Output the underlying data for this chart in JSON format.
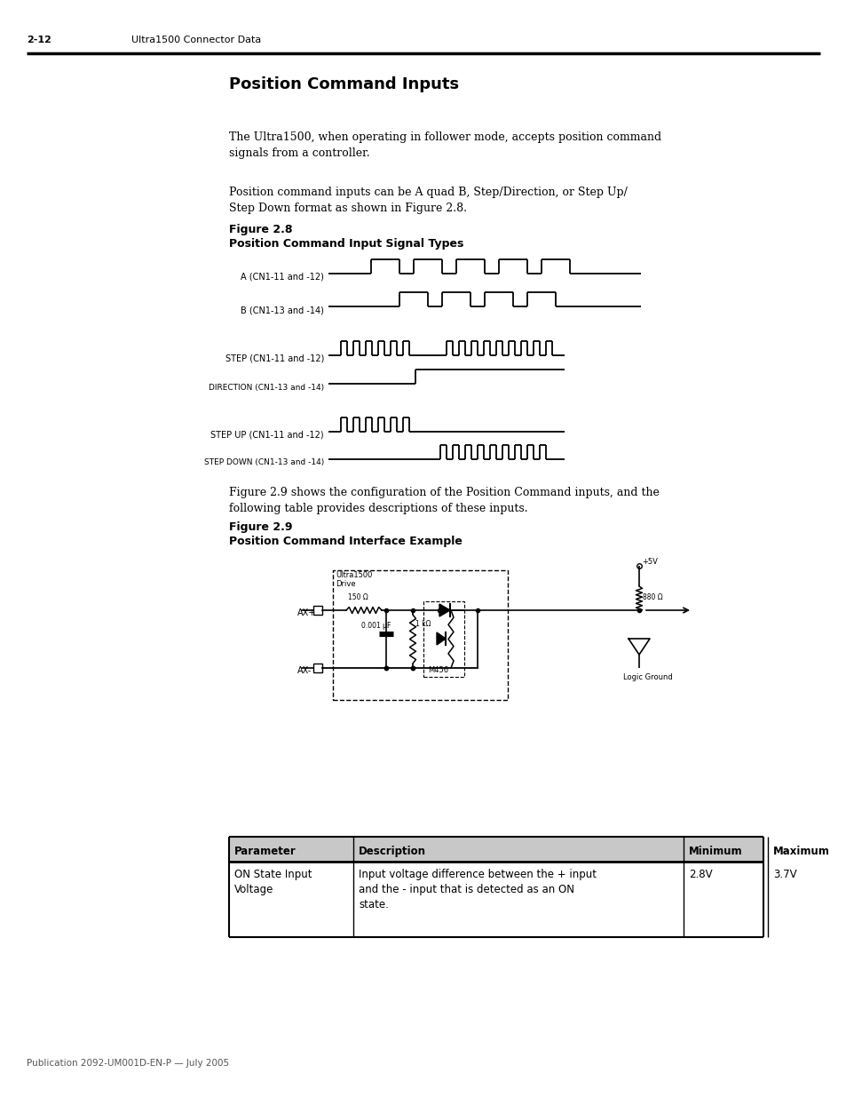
{
  "page_number": "2-12",
  "header_text": "Ultra1500 Connector Data",
  "footer_text": "Publication 2092-UM001D-EN-P — July 2005",
  "title": "Position Command Inputs",
  "para1": "The Ultra1500, when operating in follower mode, accepts position command\nsignals from a controller.",
  "para2": "Position command inputs can be A quad B, Step/Direction, or Step Up/\nStep Down format as shown in Figure 2.8.",
  "para3": "Figure 2.9 shows the configuration of the Position Command inputs, and the\nfollowing table provides descriptions of these inputs.",
  "fig28_label": "Figure 2.8",
  "fig28_title": "Position Command Input Signal Types",
  "fig29_label": "Figure 2.9",
  "fig29_title": "Position Command Interface Example",
  "signal_labels": [
    "A (CN1-11 and -12)",
    "B (CN1-13 and -14)",
    "STEP (CN1-11 and -12)",
    "DIRECTION (CN1-13 and -14)",
    "STEP UP (CN1-11 and -12)",
    "STEP DOWN (CN1-13 and -14)"
  ],
  "table_headers": [
    "Parameter",
    "Description",
    "Minimum",
    "Maximum"
  ],
  "table_row": [
    "ON State Input\nVoltage",
    "Input voltage difference between the + input\nand the - input that is detected as an ON\nstate.",
    "2.8V",
    "3.7V"
  ],
  "bg_color": "#ffffff",
  "text_color": "#000000"
}
